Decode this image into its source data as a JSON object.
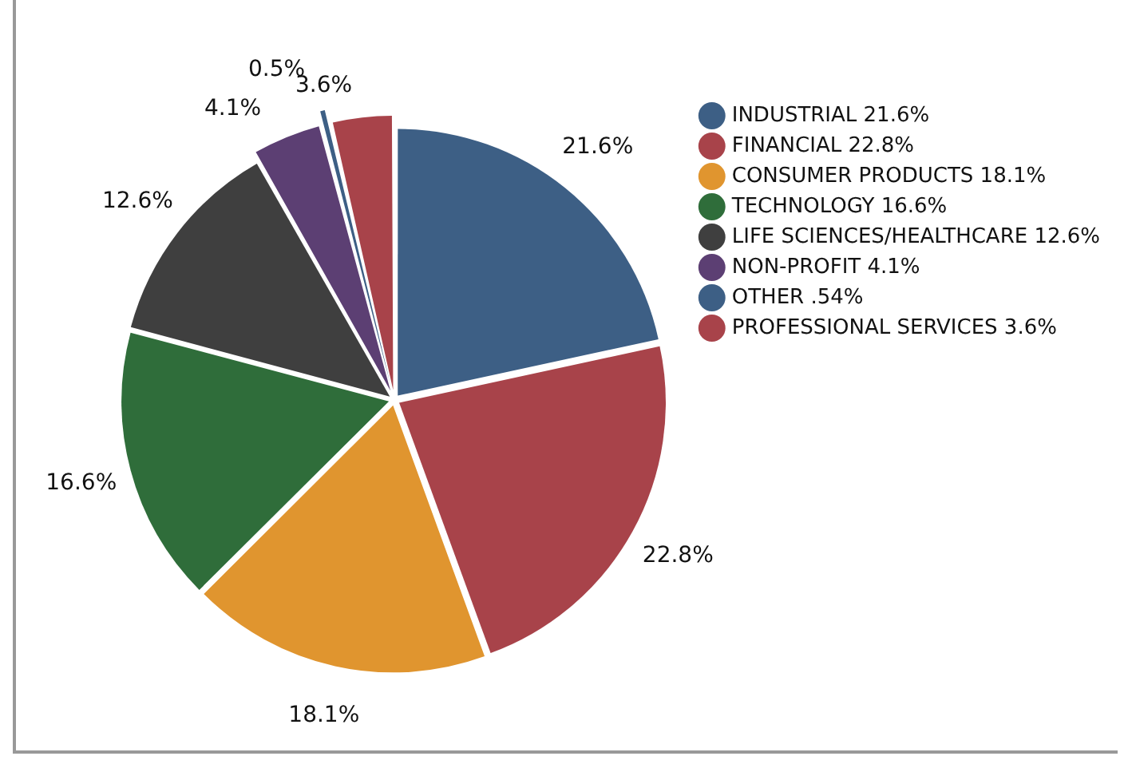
{
  "chart_data": {
    "type": "pie",
    "categories": [
      "INDUSTRIAL 21.6%",
      "FINANCIAL 22.8%",
      "CONSUMER PRODUCTS 18.1%",
      "TECHNOLOGY 16.6%",
      "LIFE SCIENCES/HEALTHCARE 12.6%",
      "NON-PROFIT 4.1%",
      "OTHER .54%",
      "PROFESSIONAL SERVICES 3.6%"
    ],
    "values": [
      21.6,
      22.8,
      18.1,
      16.6,
      12.6,
      4.1,
      0.54,
      3.6
    ],
    "value_labels": [
      "21.6%",
      "22.8%",
      "18.1%",
      "16.6%",
      "12.6%",
      "4.1%",
      "0.5%",
      "3.6%"
    ],
    "colors": [
      "#3d5f85",
      "#a8434a",
      "#e0952f",
      "#2f6d3a",
      "#3f3f3f",
      "#5c3f73",
      "#3d5f85",
      "#a8434a"
    ],
    "legend": "top right"
  }
}
